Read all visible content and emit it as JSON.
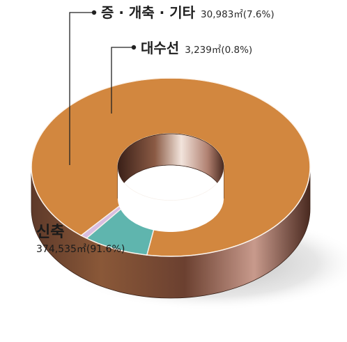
{
  "chart_data": {
    "type": "pie",
    "title": "",
    "slices": [
      {
        "label": "신축",
        "value": 374535,
        "value_label": "374,535㎡(91.6%)",
        "percent": 91.6,
        "color": "#d2873f"
      },
      {
        "label": "증 · 개축 · 기타",
        "value": 30983,
        "value_label": "30,983㎡(7.6%)",
        "percent": 7.6,
        "color": "#5fb5ae"
      },
      {
        "label": "대수선",
        "value": 3239,
        "value_label": "3,239㎡(0.8%)",
        "percent": 0.8,
        "color": "#d9bde0"
      }
    ],
    "style": "3d-donut"
  }
}
